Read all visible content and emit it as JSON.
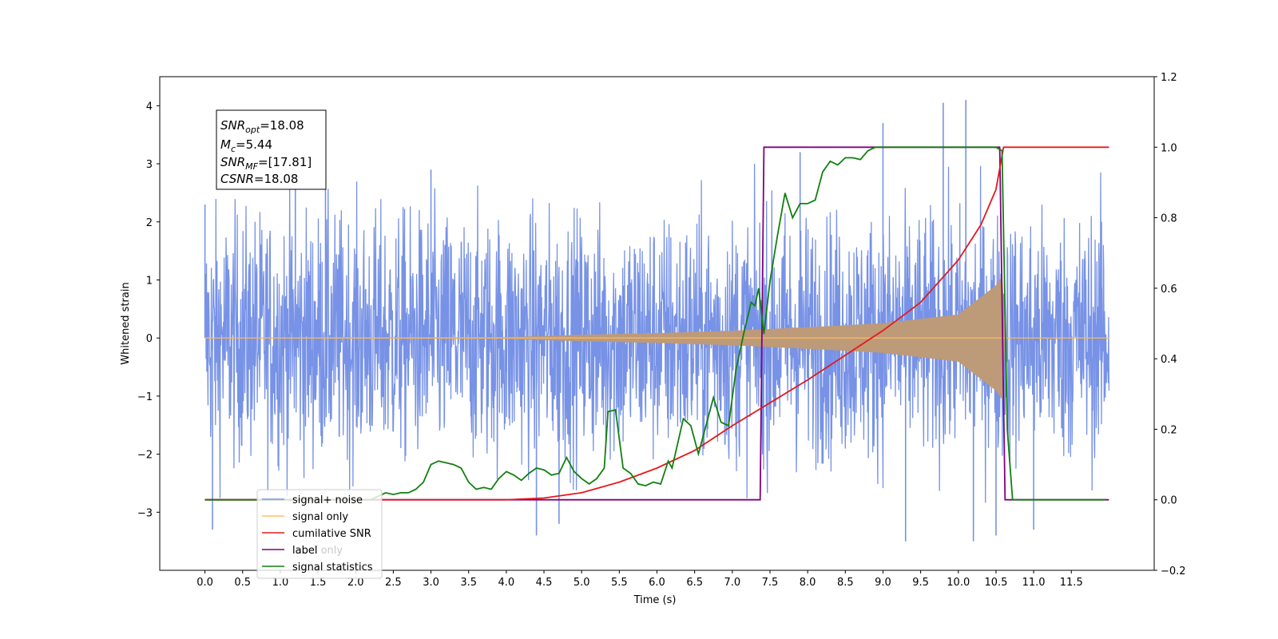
{
  "chart_data": {
    "type": "line",
    "xlabel": "Time (s)",
    "ylabel": "Whitened strain",
    "xlim": [
      -0.6,
      12.6
    ],
    "ylim_left": [
      -4.0,
      4.5
    ],
    "ylim_right": [
      -0.2,
      1.2
    ],
    "x_ticks": [
      "0.0",
      "0.5",
      "1.0",
      "1.5",
      "2.0",
      "2.5",
      "3.0",
      "3.5",
      "4.0",
      "4.5",
      "5.0",
      "5.5",
      "6.0",
      "6.5",
      "7.0",
      "7.5",
      "8.0",
      "8.5",
      "9.0",
      "9.5",
      "10.0",
      "10.5",
      "11.0",
      "11.5"
    ],
    "y_left_ticks": [
      "−3",
      "−2",
      "−1",
      "0",
      "1",
      "2",
      "3",
      "4"
    ],
    "y_right_ticks": [
      "−0.2",
      "0.0",
      "0.2",
      "0.4",
      "0.6",
      "0.8",
      "1.0",
      "1.2"
    ],
    "stats_box": [
      {
        "main": "SNR",
        "sub": "opt",
        "value": "=18.08"
      },
      {
        "main": "M",
        "sub": "c",
        "value": "=5.44"
      },
      {
        "main": "SNR",
        "sub": "MF",
        "value": "=[17.81]"
      },
      {
        "main": "CSNR",
        "sub": "",
        "value": "=18.08"
      }
    ],
    "legend_location": "lower-left",
    "legend": [
      {
        "label": "signal+ noise",
        "color": "#7792e6"
      },
      {
        "label": "signal only",
        "color": "#ffbf66"
      },
      {
        "label": "cumilative SNR",
        "color": "#e31a1c"
      },
      {
        "label": "label",
        "color": "#800080"
      },
      {
        "label": "signal statistics",
        "color": "#118011"
      }
    ],
    "hidden_legend_label": "label only",
    "series": [
      {
        "name": "signal+ noise",
        "axis": "left",
        "color": "#7792e6",
        "kind": "noise_band",
        "x_range": [
          0.0,
          12.0
        ],
        "typical_amplitude": 1.7,
        "peak_values": [
          {
            "x": 0.0,
            "y": 2.3
          },
          {
            "x": 0.1,
            "y": -3.3
          },
          {
            "x": 1.2,
            "y": 3.6
          },
          {
            "x": 1.6,
            "y": 3.6
          },
          {
            "x": 3.0,
            "y": 2.9
          },
          {
            "x": 4.4,
            "y": -3.4
          },
          {
            "x": 4.7,
            "y": -3.2
          },
          {
            "x": 7.9,
            "y": 3.2
          },
          {
            "x": 9.0,
            "y": 3.7
          },
          {
            "x": 9.3,
            "y": -3.5
          },
          {
            "x": 9.8,
            "y": 4.05
          },
          {
            "x": 10.1,
            "y": 4.1
          },
          {
            "x": 10.2,
            "y": -3.5
          },
          {
            "x": 10.5,
            "y": -3.4
          },
          {
            "x": 11.0,
            "y": -3.3
          },
          {
            "x": 11.9,
            "y": 2.0
          }
        ]
      },
      {
        "name": "signal only",
        "axis": "left",
        "color": "#ffbf66",
        "kind": "chirp_envelope",
        "x_range": [
          0.0,
          12.0
        ],
        "merger_time": 10.6,
        "amplitude": [
          {
            "x": 0.0,
            "y": 0.0
          },
          {
            "x": 4.0,
            "y": 0.01
          },
          {
            "x": 5.0,
            "y": 0.05
          },
          {
            "x": 6.0,
            "y": 0.08
          },
          {
            "x": 7.0,
            "y": 0.12
          },
          {
            "x": 8.0,
            "y": 0.18
          },
          {
            "x": 9.0,
            "y": 0.25
          },
          {
            "x": 10.0,
            "y": 0.4
          },
          {
            "x": 10.5,
            "y": 0.9
          },
          {
            "x": 10.58,
            "y": 1.05
          },
          {
            "x": 10.62,
            "y": 0.0
          },
          {
            "x": 12.0,
            "y": 0.0
          }
        ]
      },
      {
        "name": "cumilative SNR",
        "axis": "right",
        "color": "#e31a1c",
        "points": [
          [
            0.0,
            0.0
          ],
          [
            4.0,
            0.0
          ],
          [
            4.5,
            0.005
          ],
          [
            5.0,
            0.02
          ],
          [
            5.5,
            0.05
          ],
          [
            6.0,
            0.09
          ],
          [
            6.5,
            0.14
          ],
          [
            7.0,
            0.21
          ],
          [
            7.5,
            0.275
          ],
          [
            8.0,
            0.34
          ],
          [
            8.5,
            0.41
          ],
          [
            9.0,
            0.48
          ],
          [
            9.5,
            0.56
          ],
          [
            10.0,
            0.68
          ],
          [
            10.3,
            0.78
          ],
          [
            10.5,
            0.88
          ],
          [
            10.6,
            1.0
          ],
          [
            12.0,
            1.0
          ]
        ]
      },
      {
        "name": "label",
        "axis": "right",
        "color": "#800080",
        "points": [
          [
            0.0,
            0.0
          ],
          [
            7.37,
            0.0
          ],
          [
            7.42,
            1.0
          ],
          [
            10.55,
            1.0
          ],
          [
            10.62,
            0.0
          ],
          [
            12.0,
            0.0
          ]
        ]
      },
      {
        "name": "signal statistics",
        "axis": "right",
        "color": "#118011",
        "points": [
          [
            0.0,
            0.0
          ],
          [
            2.2,
            0.0
          ],
          [
            2.3,
            0.01
          ],
          [
            2.4,
            0.02
          ],
          [
            2.5,
            0.015
          ],
          [
            2.6,
            0.02
          ],
          [
            2.7,
            0.02
          ],
          [
            2.8,
            0.03
          ],
          [
            2.9,
            0.05
          ],
          [
            3.0,
            0.1
          ],
          [
            3.1,
            0.11
          ],
          [
            3.2,
            0.105
          ],
          [
            3.3,
            0.1
          ],
          [
            3.4,
            0.09
          ],
          [
            3.5,
            0.05
          ],
          [
            3.6,
            0.03
          ],
          [
            3.7,
            0.035
          ],
          [
            3.8,
            0.03
          ],
          [
            3.9,
            0.06
          ],
          [
            4.0,
            0.08
          ],
          [
            4.1,
            0.07
          ],
          [
            4.2,
            0.055
          ],
          [
            4.3,
            0.075
          ],
          [
            4.4,
            0.09
          ],
          [
            4.5,
            0.085
          ],
          [
            4.6,
            0.07
          ],
          [
            4.7,
            0.075
          ],
          [
            4.8,
            0.12
          ],
          [
            4.9,
            0.08
          ],
          [
            5.0,
            0.06
          ],
          [
            5.1,
            0.045
          ],
          [
            5.2,
            0.06
          ],
          [
            5.3,
            0.09
          ],
          [
            5.35,
            0.25
          ],
          [
            5.45,
            0.255
          ],
          [
            5.55,
            0.09
          ],
          [
            5.65,
            0.075
          ],
          [
            5.75,
            0.045
          ],
          [
            5.85,
            0.04
          ],
          [
            5.95,
            0.05
          ],
          [
            6.05,
            0.045
          ],
          [
            6.15,
            0.11
          ],
          [
            6.2,
            0.09
          ],
          [
            6.35,
            0.23
          ],
          [
            6.45,
            0.21
          ],
          [
            6.55,
            0.13
          ],
          [
            6.65,
            0.21
          ],
          [
            6.75,
            0.29
          ],
          [
            6.85,
            0.22
          ],
          [
            6.95,
            0.21
          ],
          [
            7.05,
            0.37
          ],
          [
            7.15,
            0.47
          ],
          [
            7.25,
            0.56
          ],
          [
            7.3,
            0.55
          ],
          [
            7.35,
            0.6
          ],
          [
            7.42,
            0.47
          ],
          [
            7.5,
            0.62
          ],
          [
            7.6,
            0.75
          ],
          [
            7.7,
            0.87
          ],
          [
            7.8,
            0.8
          ],
          [
            7.9,
            0.84
          ],
          [
            8.0,
            0.84
          ],
          [
            8.1,
            0.85
          ],
          [
            8.2,
            0.93
          ],
          [
            8.3,
            0.96
          ],
          [
            8.4,
            0.95
          ],
          [
            8.5,
            0.97
          ],
          [
            8.6,
            0.97
          ],
          [
            8.7,
            0.965
          ],
          [
            8.8,
            0.99
          ],
          [
            8.9,
            1.0
          ],
          [
            10.5,
            1.0
          ],
          [
            10.58,
            0.99
          ],
          [
            10.65,
            0.2
          ],
          [
            10.72,
            0.0
          ],
          [
            11.95,
            0.0
          ]
        ]
      }
    ]
  }
}
